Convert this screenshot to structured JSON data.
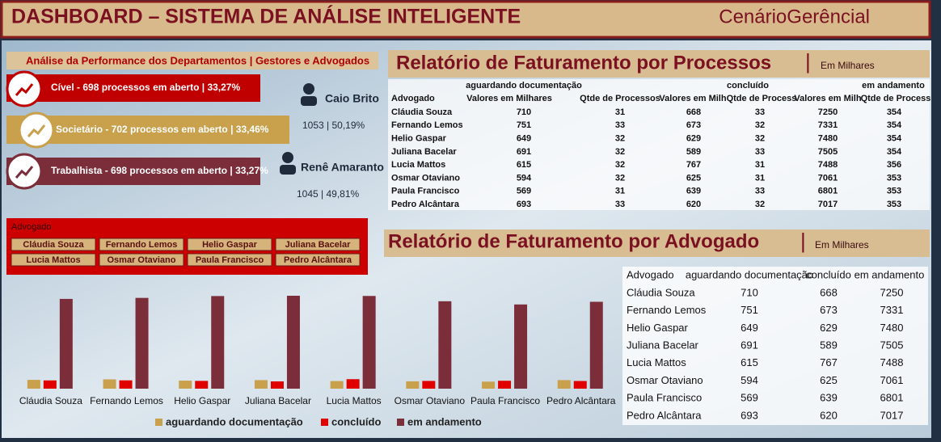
{
  "header": {
    "title": "DASHBOARD – SISTEMA DE ANÁLISE INTELIGENTE",
    "brand": "CenárioGerêncial"
  },
  "performance": {
    "title": "Análise da Performance dos Departamentos | Gestores e Advogados",
    "departments": [
      "Cível - 698 processos em aberto | 33,27%",
      "Societário - 702 processos em aberto  | 33,46%",
      "Trabalhista - 698 processos em aberto | 33,27%"
    ],
    "managers": [
      {
        "name": "Caio Brito",
        "stat": "1053 | 50,19%"
      },
      {
        "name": "Renê Amaranto",
        "stat": "1045 | 49,81%"
      }
    ]
  },
  "slicer": {
    "title": "Advogado",
    "items": [
      "Cláudia Souza",
      "Fernando Lemos",
      "Helio Gaspar",
      "Juliana Bacelar",
      "Lucia Mattos",
      "Osmar Otaviano",
      "Paula Francisco",
      "Pedro Alcântara"
    ]
  },
  "process_report": {
    "title": "Relatório de Faturamento por Processos",
    "unit": "Em Milhares",
    "groups": [
      "aguardando documentação",
      "concluído",
      "em andamento"
    ],
    "columns": [
      "Advogado",
      "Valores em Milhares",
      "Qtde de Processos",
      "Valores em Milh",
      "Qtde de Process",
      "Valores em Milh",
      "Qtde de Process"
    ],
    "rows": [
      [
        "Cláudia Souza",
        710,
        31,
        668,
        33,
        7250,
        354
      ],
      [
        "Fernando Lemos",
        751,
        33,
        673,
        32,
        7331,
        354
      ],
      [
        "Helio Gaspar",
        649,
        32,
        629,
        32,
        7480,
        354
      ],
      [
        "Juliana Bacelar",
        691,
        32,
        589,
        33,
        7505,
        354
      ],
      [
        "Lucia Mattos",
        615,
        32,
        767,
        31,
        7488,
        356
      ],
      [
        "Osmar Otaviano",
        594,
        32,
        625,
        31,
        7061,
        353
      ],
      [
        "Paula Francisco",
        569,
        31,
        639,
        33,
        6801,
        353
      ],
      [
        "Pedro Alcântara",
        693,
        33,
        620,
        32,
        7017,
        353
      ]
    ]
  },
  "lawyer_report": {
    "title": "Relatório de Faturamento por Advogado",
    "unit": "Em Milhares",
    "columns": [
      "Advogado",
      "aguardando documentação",
      "concluído",
      "em andamento"
    ],
    "rows": [
      [
        "Cláudia Souza",
        710,
        668,
        7250
      ],
      [
        "Fernando Lemos",
        751,
        673,
        7331
      ],
      [
        "Helio Gaspar",
        649,
        629,
        7480
      ],
      [
        "Juliana Bacelar",
        691,
        589,
        7505
      ],
      [
        "Lucia Mattos",
        615,
        767,
        7488
      ],
      [
        "Osmar Otaviano",
        594,
        625,
        7061
      ],
      [
        "Paula Francisco",
        569,
        639,
        6801
      ],
      [
        "Pedro Alcântara",
        693,
        620,
        7017
      ]
    ]
  },
  "chart_data": {
    "type": "bar",
    "categories": [
      "Cláudia Souza",
      "Fernando Lemos",
      "Helio Gaspar",
      "Juliana Bacelar",
      "Lucia Mattos",
      "Osmar Otaviano",
      "Paula Francisco",
      "Pedro Alcântara"
    ],
    "series": [
      {
        "name": "aguardando documentação",
        "color": "#c9a04c",
        "values": [
          710,
          751,
          649,
          691,
          615,
          594,
          569,
          693
        ]
      },
      {
        "name": "concluído",
        "color": "#e00000",
        "values": [
          668,
          673,
          629,
          589,
          767,
          625,
          639,
          620
        ]
      },
      {
        "name": "em andamento",
        "color": "#7b2d3a",
        "values": [
          7250,
          7331,
          7480,
          7505,
          7488,
          7061,
          6801,
          7017
        ]
      }
    ]
  }
}
